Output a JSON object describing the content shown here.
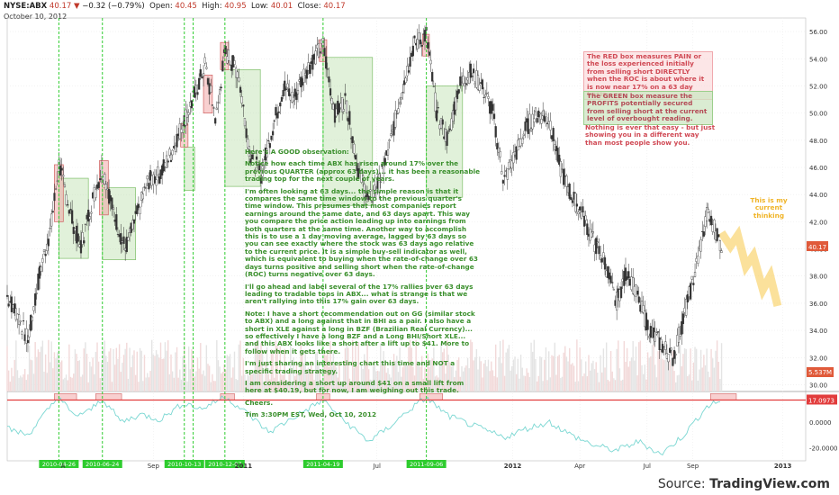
{
  "header": {
    "symbol": "NYSE:ABX",
    "last": "40.17",
    "change": "−0.32 (−0.79%)",
    "open_label": "Open:",
    "open": "40.45",
    "high_label": "High:",
    "high": "40.95",
    "low_label": "Low:",
    "low": "40.01",
    "close_label": "Close:",
    "close": "40.17",
    "date": "October 10, 2012"
  },
  "notes": {
    "green": [
      "Here's A GOOD observation:",
      "Notice how each time ABX has risen around 17% over the previous QUARTER (approx 63 days)... it has been a reasonable trading top for the next couple of years.",
      "I'm often looking at 63 days... the simple reason is that it compares the same time window to the previous quarter's time window. This presumes that most companies report earnings around the same date, and 63 days apart. This way you compare the price action leading up into earnings from both quarters at the same time. Another way to accomplish this is to use a 1 day moving average, lagged by 63 days so you can see exactly where the stock was 63 days ago relative to the current price. It is a simple buy-sell indicator as well, which is equivalent to buying when the rate-of-change over 63 days turns positive and selling short when the rate-of-change (ROC) turns negative over 63 days.",
      "I'll go ahead and label several of the 17% rallies over 63 days leading to tradable tops in ABX... what is strange is that we aren't rallying into this 17% gain over 63 days.",
      "Note: I have a short recommendation out on GG (similar stock to ABX) and a long against that in BHI as a pair. I also have a short in XLE against a long in BZF (Brazilian Real Currency)... so effectively I have a long BZF and a Long BHI/Short XLE... and this ABX looks like a short after a lift up to $41. More to follow when it gets there.",
      "I'm just sharing an interesting chart this time and NOT a specific trading strategy.",
      "I am considering a short up around $41 on a small lift from here at $40.19, but for now, I am weighing out this trade.",
      "Cheers.",
      "Tim 3:30PM EST, Wed, Oct 10, 2012"
    ],
    "red_box": "The RED box measures PAIN or the loss experienced initially from selling short DIRECTLY when the ROC is about where it is now near 17% on a 63 day basis.",
    "green_box": "The GREEN box measure the PROFITS potentially secured from selling short at the current level of overbought reading.",
    "red_text": "Nothing is ever that easy - but just showing you in a different way than most people show you.",
    "thinking": "This is my current thinking"
  },
  "source": {
    "label": "Source:",
    "brand": "TradingView.com"
  },
  "colors": {
    "up": "#2a2a2a",
    "down": "#555555",
    "red": "#e23c3c",
    "green_line": "#2ecc2e",
    "roc": "#7ad7d2",
    "thinking": "#f7c948",
    "label_red": "#e05a3a",
    "label_roc": "#e23c3c"
  },
  "chart_data": {
    "type": "candlestick",
    "price_axis": {
      "ticks": [
        30,
        32,
        34,
        36,
        38,
        40,
        42,
        44,
        46,
        48,
        50,
        52,
        54,
        56
      ],
      "ylim": [
        29.5,
        57
      ]
    },
    "time_axis": {
      "ticks": [
        "Sep",
        "2011",
        "Jul",
        "2012",
        "Apr",
        "Jul",
        "Sep",
        "2013"
      ],
      "tick_dates": [
        "2010-09-01",
        "2011-01-01",
        "2011-07-01",
        "2012-01-01",
        "2012-04-01",
        "2012-07-01",
        "2012-09-01",
        "2013-01-01"
      ],
      "partial_left": "A",
      "range": [
        "2010-02-15",
        "2013-02-01"
      ]
    },
    "markers": [
      {
        "date": "2010-04-26",
        "label": "2010-04-26"
      },
      {
        "date": "2010-06-24",
        "label": "2010-06-24"
      },
      {
        "date": "2010-10-13",
        "label": "2010-10-13"
      },
      {
        "date": "2010-10-25",
        "label": ""
      },
      {
        "date": "2010-12-07",
        "label": "2010-12-07"
      },
      {
        "date": "2011-04-19",
        "label": "2011-04-19"
      },
      {
        "date": "2011-09-06",
        "label": "2011-09-06"
      }
    ],
    "close_path": [
      [
        "2010-02-15",
        36.5
      ],
      [
        "2010-03-01",
        35.2
      ],
      [
        "2010-03-15",
        33.2
      ],
      [
        "2010-04-01",
        38.5
      ],
      [
        "2010-04-15",
        41.5
      ],
      [
        "2010-04-26",
        46.2
      ],
      [
        "2010-05-10",
        43.0
      ],
      [
        "2010-05-25",
        40.0
      ],
      [
        "2010-06-10",
        43.5
      ],
      [
        "2010-06-24",
        46.0
      ],
      [
        "2010-07-10",
        42.5
      ],
      [
        "2010-07-25",
        40.0
      ],
      [
        "2010-08-10",
        42.5
      ],
      [
        "2010-08-25",
        45.0
      ],
      [
        "2010-09-10",
        45.5
      ],
      [
        "2010-09-25",
        47.0
      ],
      [
        "2010-10-13",
        49.5
      ],
      [
        "2010-10-25",
        51.0
      ],
      [
        "2010-11-10",
        53.5
      ],
      [
        "2010-11-25",
        49.5
      ],
      [
        "2010-12-07",
        54.5
      ],
      [
        "2010-12-25",
        53.0
      ],
      [
        "2011-01-10",
        47.0
      ],
      [
        "2011-01-25",
        45.5
      ],
      [
        "2011-02-10",
        49.0
      ],
      [
        "2011-02-25",
        52.0
      ],
      [
        "2011-03-10",
        51.0
      ],
      [
        "2011-03-25",
        53.0
      ],
      [
        "2011-04-19",
        55.0
      ],
      [
        "2011-05-05",
        50.0
      ],
      [
        "2011-05-20",
        51.0
      ],
      [
        "2011-06-05",
        46.0
      ],
      [
        "2011-06-20",
        43.5
      ],
      [
        "2011-07-05",
        45.0
      ],
      [
        "2011-07-20",
        48.0
      ],
      [
        "2011-08-05",
        52.0
      ],
      [
        "2011-08-20",
        55.0
      ],
      [
        "2011-09-06",
        55.8
      ],
      [
        "2011-09-20",
        50.0
      ],
      [
        "2011-10-05",
        48.0
      ],
      [
        "2011-10-20",
        52.0
      ],
      [
        "2011-11-05",
        53.0
      ],
      [
        "2011-11-20",
        52.0
      ],
      [
        "2011-12-05",
        50.0
      ],
      [
        "2011-12-20",
        45.0
      ],
      [
        "2012-01-05",
        47.0
      ],
      [
        "2012-01-20",
        49.0
      ],
      [
        "2012-02-05",
        50.0
      ],
      [
        "2012-02-20",
        49.5
      ],
      [
        "2012-03-05",
        46.0
      ],
      [
        "2012-03-20",
        44.0
      ],
      [
        "2012-04-05",
        42.5
      ],
      [
        "2012-04-20",
        40.5
      ],
      [
        "2012-05-05",
        39.0
      ],
      [
        "2012-05-20",
        36.0
      ],
      [
        "2012-06-05",
        38.5
      ],
      [
        "2012-06-20",
        36.0
      ],
      [
        "2012-07-05",
        34.0
      ],
      [
        "2012-07-20",
        33.0
      ],
      [
        "2012-08-05",
        32.0
      ],
      [
        "2012-08-20",
        35.0
      ],
      [
        "2012-09-05",
        38.5
      ],
      [
        "2012-09-20",
        42.5
      ],
      [
        "2012-10-01",
        41.5
      ],
      [
        "2012-10-10",
        40.17
      ]
    ],
    "red_boxes": [
      {
        "from": "2010-04-20",
        "to": "2010-05-02",
        "low": 42.0,
        "high": 46.2
      },
      {
        "from": "2010-06-20",
        "to": "2010-07-02",
        "low": 42.5,
        "high": 46.5
      },
      {
        "from": "2010-10-08",
        "to": "2010-10-18",
        "low": 47.5,
        "high": 49.2
      },
      {
        "from": "2010-11-08",
        "to": "2010-11-20",
        "low": 50.0,
        "high": 52.8
      },
      {
        "from": "2010-12-01",
        "to": "2010-12-12",
        "low": 53.2,
        "high": 55.2
      },
      {
        "from": "2011-04-14",
        "to": "2011-04-24",
        "low": 53.8,
        "high": 55.4
      },
      {
        "from": "2011-09-01",
        "to": "2011-09-10",
        "low": 54.2,
        "high": 55.8
      }
    ],
    "green_boxes": [
      {
        "from": "2010-04-26",
        "to": "2010-06-05",
        "low": 39.3,
        "high": 45.2
      },
      {
        "from": "2010-06-24",
        "to": "2010-08-08",
        "low": 39.2,
        "high": 44.5
      },
      {
        "from": "2010-10-13",
        "to": "2010-10-27",
        "low": 44.3,
        "high": 47.5
      },
      {
        "from": "2010-12-07",
        "to": "2011-01-24",
        "low": 44.6,
        "high": 53.2
      },
      {
        "from": "2011-04-19",
        "to": "2011-06-25",
        "low": 43.2,
        "high": 54.1
      },
      {
        "from": "2011-09-06",
        "to": "2011-10-25",
        "low": 43.8,
        "high": 52.0
      }
    ],
    "thinking_path": [
      [
        "2012-10-10",
        41.2
      ],
      [
        "2012-10-22",
        40.2
      ],
      [
        "2012-11-01",
        41.0
      ],
      [
        "2012-11-12",
        38.7
      ],
      [
        "2012-11-22",
        39.5
      ],
      [
        "2012-12-05",
        37.0
      ],
      [
        "2012-12-15",
        38.0
      ],
      [
        "2012-12-25",
        35.8
      ]
    ],
    "volume_label": "5.537M",
    "roc": {
      "period_days": 63,
      "threshold": 17.0973,
      "threshold_label": "17.0973",
      "ticks": [
        0.0,
        -20.0
      ],
      "tick_labels": [
        "0.0000",
        "-20.0000"
      ],
      "ylim": [
        -30,
        23
      ],
      "path": [
        [
          "2010-02-15",
          -5
        ],
        [
          "2010-03-15",
          -10
        ],
        [
          "2010-04-05",
          5
        ],
        [
          "2010-04-26",
          20
        ],
        [
          "2010-05-15",
          5
        ],
        [
          "2010-06-05",
          8
        ],
        [
          "2010-06-24",
          18
        ],
        [
          "2010-07-20",
          0
        ],
        [
          "2010-08-15",
          6
        ],
        [
          "2010-09-10",
          2
        ],
        [
          "2010-10-13",
          15
        ],
        [
          "2010-11-05",
          10
        ],
        [
          "2010-12-07",
          20
        ],
        [
          "2011-01-10",
          5
        ],
        [
          "2011-02-05",
          -8
        ],
        [
          "2011-03-05",
          2
        ],
        [
          "2011-04-19",
          17
        ],
        [
          "2011-05-20",
          0
        ],
        [
          "2011-06-20",
          -15
        ],
        [
          "2011-07-15",
          -5
        ],
        [
          "2011-08-15",
          10
        ],
        [
          "2011-09-06",
          19
        ],
        [
          "2011-10-05",
          5
        ],
        [
          "2011-11-05",
          -2
        ],
        [
          "2011-12-20",
          -12
        ],
        [
          "2012-01-20",
          -5
        ],
        [
          "2012-02-20",
          0
        ],
        [
          "2012-03-20",
          -10
        ],
        [
          "2012-04-20",
          -18
        ],
        [
          "2012-05-20",
          -22
        ],
        [
          "2012-06-20",
          -15
        ],
        [
          "2012-07-20",
          -25
        ],
        [
          "2012-08-20",
          -10
        ],
        [
          "2012-09-20",
          12
        ],
        [
          "2012-10-10",
          17
        ]
      ],
      "red_zones": [
        {
          "from": "2010-04-20",
          "to": "2010-05-20"
        },
        {
          "from": "2010-06-15",
          "to": "2010-07-20"
        },
        {
          "from": "2010-12-01",
          "to": "2010-12-20"
        },
        {
          "from": "2011-04-10",
          "to": "2011-04-28"
        },
        {
          "from": "2011-08-28",
          "to": "2011-09-28"
        },
        {
          "from": "2012-09-25",
          "to": "2012-10-30"
        }
      ]
    }
  }
}
